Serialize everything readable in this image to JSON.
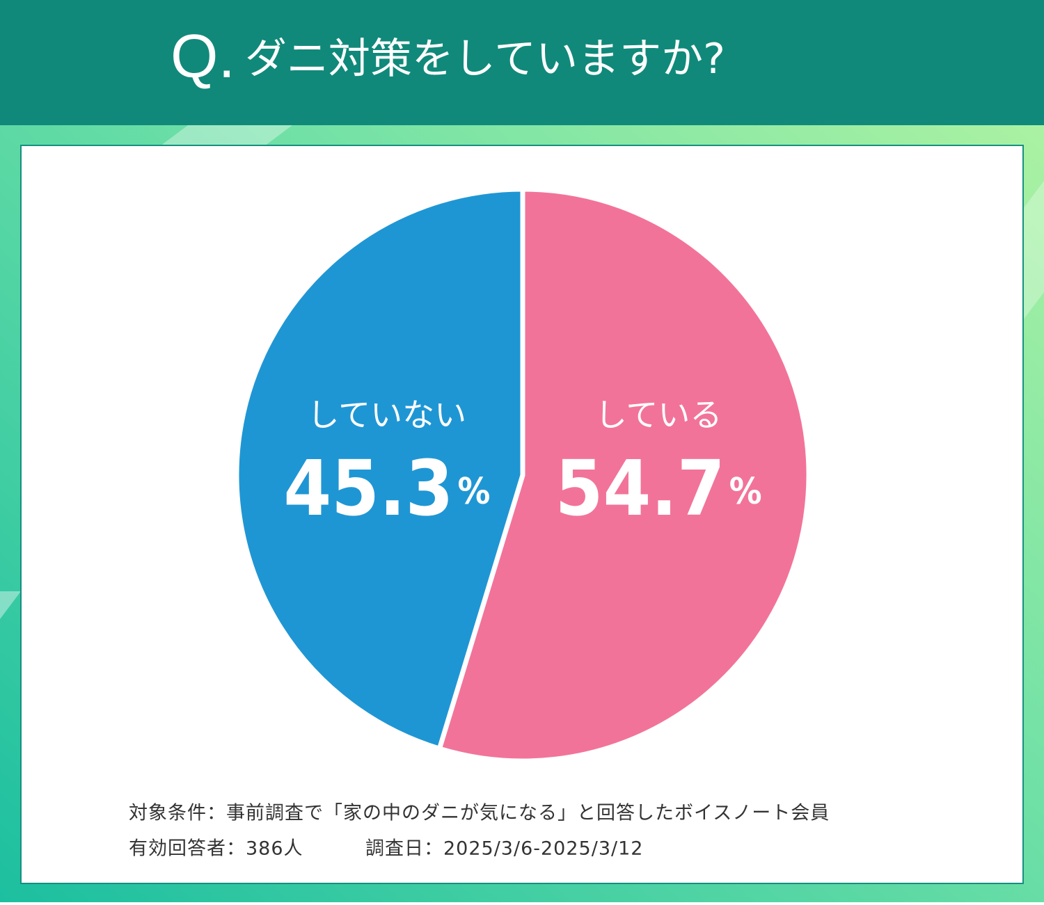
{
  "chart_data": {
    "type": "pie",
    "title_prefix": "Q.",
    "title": "ダニ対策をしていますか?",
    "categories": [
      "している",
      "していない"
    ],
    "values": [
      54.7,
      45.3
    ],
    "value_labels": [
      "54.7%",
      "45.3%"
    ],
    "colors": [
      "#f27399",
      "#1f96d4"
    ],
    "notes": [
      "対象条件：事前調査で「家の中のダニが気になる」と回答したボイスノート会員",
      "有効回答者：386人",
      "調査日：2025/3/6-2025/3/12"
    ]
  }
}
